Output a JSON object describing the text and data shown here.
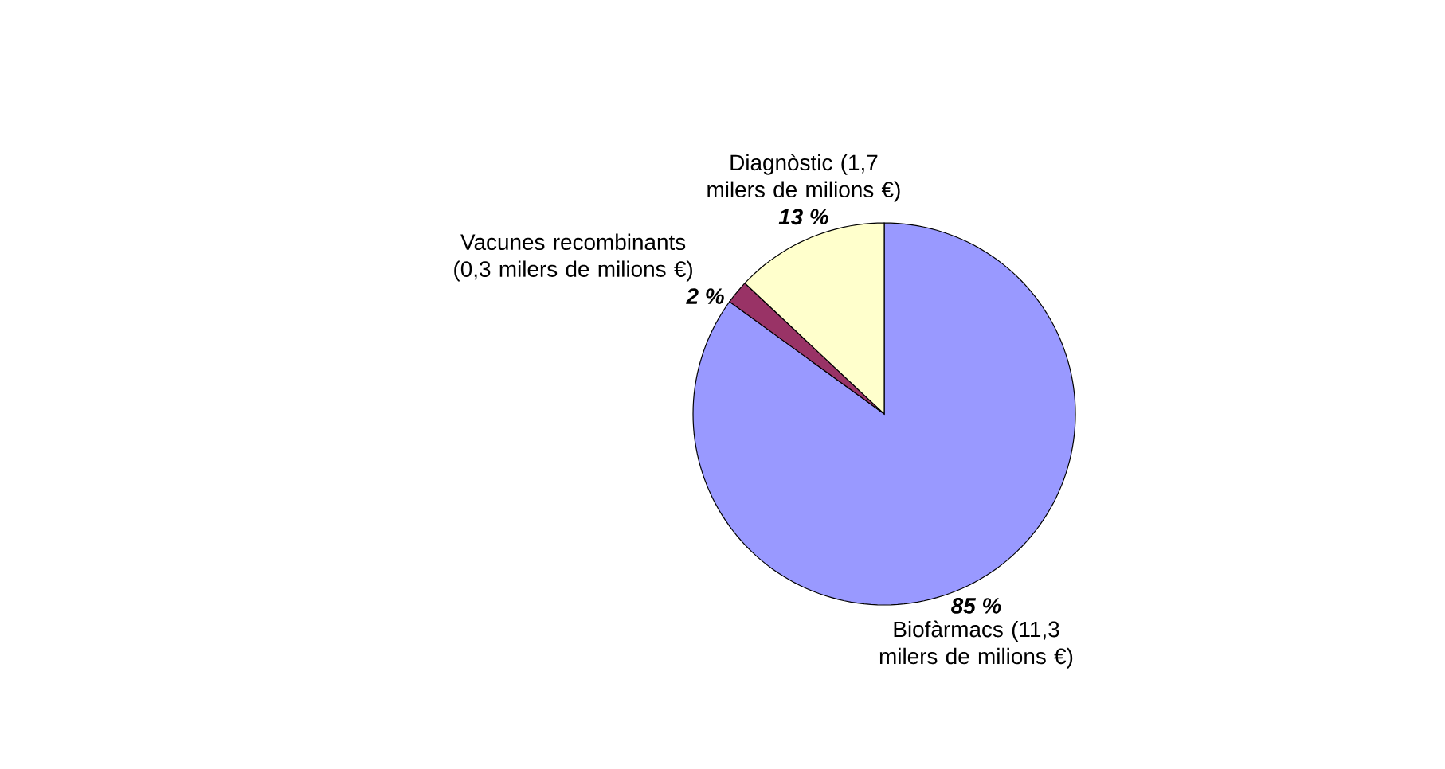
{
  "chart_data": {
    "type": "pie",
    "categories": [
      "Biofàrmacs (11,3 milers de milions €)",
      "Vacunes recombinants (0,3 milers de milions €)",
      "Diagnòstic (1,7 milers de milions €)"
    ],
    "values": [
      85,
      2,
      13
    ],
    "colors": [
      "#9999ff",
      "#993366",
      "#ffffcc"
    ],
    "value_labels": [
      "85 %",
      "2 %",
      "13 %"
    ]
  }
}
